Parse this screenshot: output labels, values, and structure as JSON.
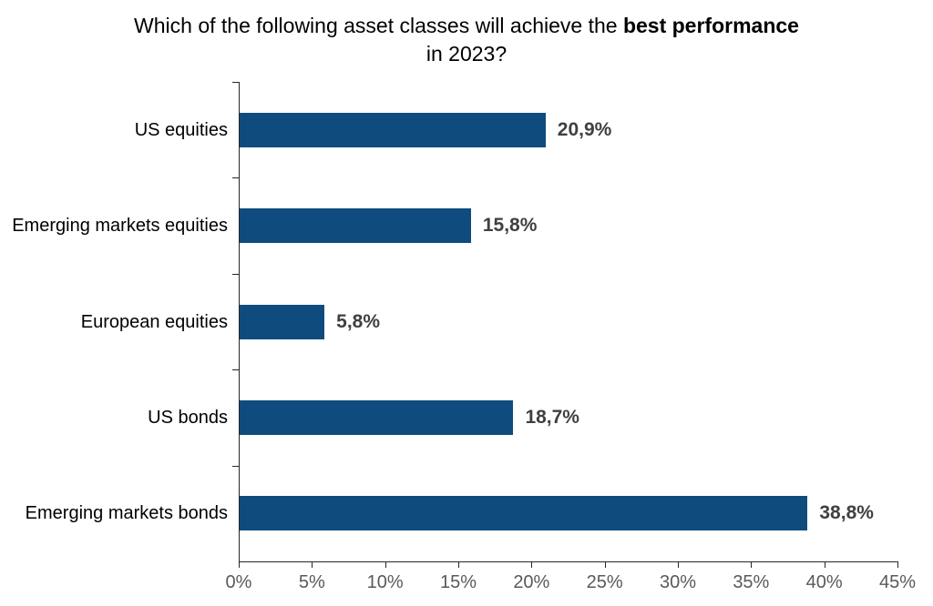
{
  "title": {
    "line1_regular": "Which of the following asset classes will achieve the ",
    "line1_bold": "best performance",
    "line2": "in 2023?"
  },
  "chart_data": {
    "type": "bar",
    "orientation": "horizontal",
    "title": "Which of the following asset classes will achieve the best performance in 2023?",
    "categories": [
      "US equities",
      "Emerging markets equities",
      "European equities",
      "US bonds",
      "Emerging markets bonds"
    ],
    "values": [
      20.9,
      15.8,
      5.8,
      18.7,
      38.8
    ],
    "value_labels": [
      "20,9%",
      "15,8%",
      "5,8%",
      "18,7%",
      "38,8%"
    ],
    "x_axis": {
      "min": 0,
      "max": 45,
      "step": 5,
      "tick_labels": [
        "0%",
        "5%",
        "10%",
        "15%",
        "20%",
        "25%",
        "30%",
        "35%",
        "40%",
        "45%"
      ]
    },
    "legend": "none",
    "grid": false,
    "colors": {
      "bar": "#0F4C7D",
      "value_label": "#404040",
      "axis_tick_label": "#595959",
      "axis_line": "#262626",
      "title": "#000000",
      "category_label": "#000000"
    }
  }
}
